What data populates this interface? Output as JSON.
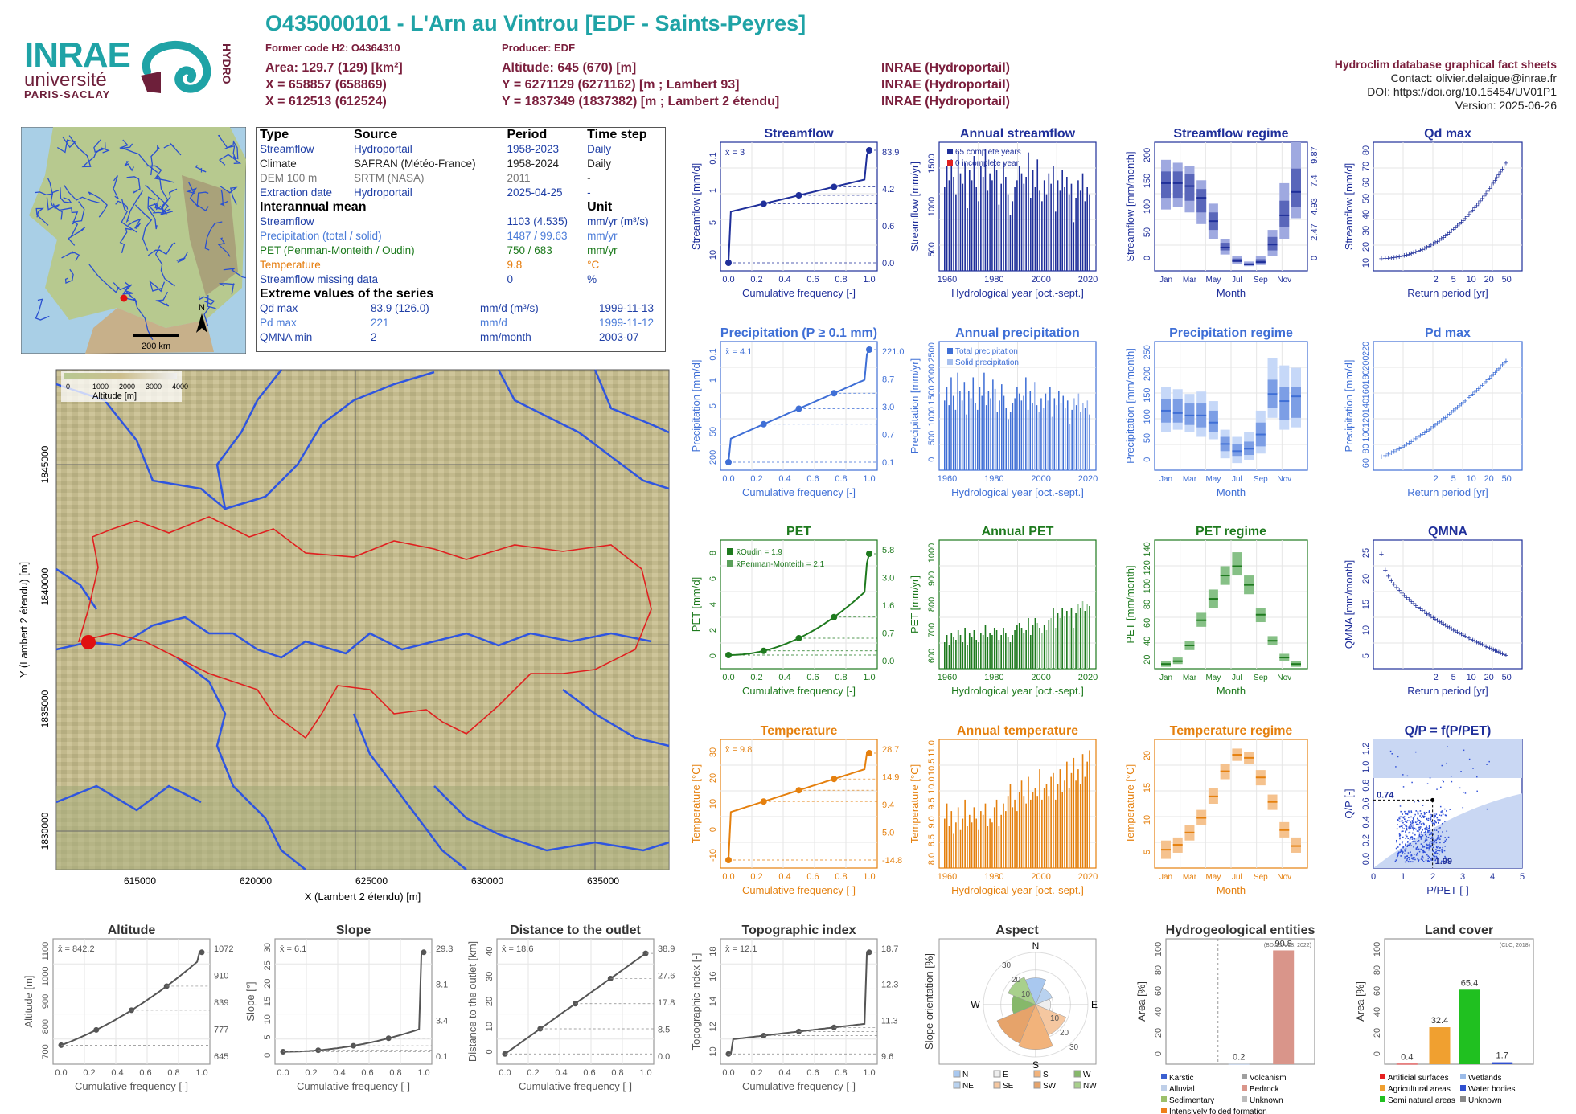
{
  "header": {
    "title": "O435000101 - L'Arn au Vintrou [EDF - Saints-Peyres]",
    "former_code": "Former code H2: O4364310",
    "producer": "Producer: EDF",
    "area": "Area: 129.7 (129) [km²]",
    "x93": "X = 658857 (658869)",
    "x2e": "X = 612513 (612524)",
    "altitude": "Altitude: 645 (670) [m]",
    "y93": "Y = 6271129 (6271162) [m ; Lambert 93]",
    "y2e": "Y = 1837349 (1837382) [m ; Lambert 2 étendu]",
    "src1": "INRAE (Hydroportail)",
    "src2": "INRAE (Hydroportail)",
    "src3": "INRAE (Hydroportail)",
    "db": "Hydroclim database graphical fact sheets",
    "contact": "Contact: olivier.delaigue@inrae.fr",
    "doi": "DOI: https://doi.org/10.15454/UV01P1",
    "version": "Version: 2025-06-26"
  },
  "logos": {
    "inrae": "INRAE",
    "univ": "université",
    "ps": "PARIS-SACLAY",
    "hydro": "HYDRO"
  },
  "minimap": {
    "scale": "200 km",
    "north": "N"
  },
  "info": {
    "h_type": "Type",
    "h_source": "Source",
    "h_period": "Period",
    "h_step": "Time step",
    "rows": [
      {
        "type": "Streamflow",
        "source": "Hydroportail",
        "period": "1958-2023",
        "step": "Daily"
      },
      {
        "type": "Climate",
        "source": "SAFRAN (Météo-France)",
        "period": "1958-2024",
        "step": "Daily"
      },
      {
        "type": "DEM 100 m",
        "source": "SRTM (NASA)",
        "period": "2011",
        "step": "-"
      },
      {
        "type": "Extraction date",
        "source": "Hydroportail",
        "period": "2025-04-25",
        "step": "-"
      }
    ],
    "h_inter": "Interannual mean",
    "h_unit": "Unit",
    "means": [
      {
        "name": "Streamflow",
        "value": "1103 (4.535)",
        "unit": "mm/yr (m³/s)"
      },
      {
        "name": "Precipitation (total / solid)",
        "value": "1487 / 99.63",
        "unit": "mm/yr"
      },
      {
        "name": "PET (Penman-Monteith / Oudin)",
        "value": "750 / 683",
        "unit": "mm/yr"
      },
      {
        "name": "Temperature",
        "value": "9.8",
        "unit": "°C"
      },
      {
        "name": "Streamflow missing data",
        "value": "0",
        "unit": "%"
      }
    ],
    "h_extreme": "Extreme values of the series",
    "extremes": [
      {
        "name": "Qd max",
        "value": "83.9 (126.0)",
        "unit": "mm/d (m³/s)",
        "date": "1999-11-13"
      },
      {
        "name": "Pd max",
        "value": "221",
        "unit": "mm/d",
        "date": "1999-11-12"
      },
      {
        "name": "QMNA min",
        "value": "2",
        "unit": "mm/month",
        "date": "2003-07"
      }
    ]
  },
  "bigmap": {
    "legend_title": "Altitude [m]",
    "legend_ticks": [
      "0",
      "1000",
      "2000",
      "3000",
      "4000"
    ],
    "xlabel": "X (Lambert 2 étendu) [m]",
    "ylabel": "Y (Lambert 2 étendu) [m]",
    "xticks": [
      "615000",
      "620000",
      "625000",
      "630000",
      "635000"
    ],
    "yticks": [
      "1845000",
      "1840000",
      "1835000",
      "1830000"
    ]
  },
  "colors": {
    "streamflow": "#1f2f9a",
    "precip": "#3f6fd6",
    "pet": "#1e7a1e",
    "temp": "#e5800e",
    "topo": "#555555",
    "teal": "#1fa3a6"
  },
  "texts": {
    "cumfreq": "Cumulative frequency [-]",
    "hydroyear": "Hydrological year [oct.-sept.]",
    "month": "Month",
    "return": "Return period [yr]",
    "months": [
      "Jan",
      "Mar",
      "May",
      "Jul",
      "Sep",
      "Nov"
    ],
    "freqticks": [
      "0.0",
      "0.2",
      "0.4",
      "0.6",
      "0.8",
      "1.0"
    ],
    "yearticks": [
      "1960",
      "1980",
      "2000",
      "2020"
    ],
    "rpticks": [
      "2",
      "5",
      "10",
      "20",
      "50"
    ]
  },
  "chart_data": [
    {
      "id": "sf_cdf",
      "type": "line",
      "title": "Streamflow",
      "ylabel": "Streamflow [mm/d]",
      "xlabel": "Cumulative frequency [-]",
      "mean_label": "x̄ = 3",
      "right_ticks": [
        "83.9",
        "4.2",
        "0.6",
        "0.0"
      ],
      "left_ticks": [
        "10",
        "5",
        "1",
        "0.1"
      ]
    },
    {
      "id": "sf_annual",
      "type": "bar",
      "title": "Annual streamflow",
      "ylabel": "Streamflow [mm/yr]",
      "yticks": [
        "500",
        "1000",
        "1500"
      ],
      "ylim": [
        0,
        1800
      ],
      "legend": [
        "65 complete years",
        "0 incomplete year"
      ],
      "values": [
        1200,
        1500,
        1300,
        1600,
        1350,
        1100,
        1700,
        1400,
        1250,
        1550,
        900,
        1450,
        1300,
        1650,
        1200,
        1000,
        1500,
        1350,
        1750,
        1150,
        1400,
        1300,
        1600,
        1450,
        950,
        1250,
        1550,
        1350,
        1100,
        800,
        1000,
        1200,
        1300,
        1500,
        1400,
        1250,
        1350,
        1700,
        1050,
        1450,
        1200,
        1600,
        1150,
        1000,
        1300,
        1100,
        1400,
        1250,
        1500,
        850,
        1300,
        1150,
        1450,
        1200,
        1350,
        1100,
        1250,
        700,
        1050,
        1300,
        1150,
        1400,
        1000,
        1200,
        1100
      ]
    },
    {
      "id": "sf_regime",
      "type": "box",
      "title": "Streamflow regime",
      "ylabel": "Streamflow [mm/month]",
      "yticks": [
        "0",
        "50",
        "100",
        "150",
        "200"
      ],
      "right_ticks": [
        "0",
        "2.47",
        "4.93",
        "7.4",
        "9.87"
      ],
      "ylim": [
        0,
        220
      ],
      "q10": [
        105,
        110,
        100,
        80,
        55,
        28,
        12,
        8,
        10,
        25,
        55,
        90
      ],
      "q25": [
        125,
        125,
        120,
        100,
        70,
        35,
        15,
        10,
        13,
        35,
        75,
        110
      ],
      "median": [
        150,
        150,
        145,
        125,
        85,
        40,
        17,
        11,
        15,
        45,
        95,
        135
      ],
      "q75": [
        170,
        170,
        165,
        140,
        100,
        48,
        21,
        13,
        20,
        58,
        120,
        175
      ],
      "q90": [
        190,
        185,
        180,
        155,
        115,
        55,
        25,
        16,
        25,
        70,
        150,
        220
      ]
    },
    {
      "id": "qd_max",
      "type": "scatter",
      "title": "Qd max",
      "ylabel": "Streamflow [mm/d]",
      "yticks": [
        "10",
        "20",
        "30",
        "40",
        "50",
        "60",
        "70",
        "80"
      ],
      "ylim": [
        0,
        88
      ]
    },
    {
      "id": "p_cdf",
      "type": "line",
      "title": "Precipitation (P ≥ 0.1 mm)",
      "ylabel": "Precipitation [mm/d]",
      "mean_label": "x̄ = 4.1",
      "right_ticks": [
        "221.0",
        "8.7",
        "3.0",
        "0.7",
        "0.1"
      ],
      "left_ticks": [
        "200",
        "50",
        "5",
        "1",
        "0.1"
      ]
    },
    {
      "id": "p_annual",
      "type": "bar",
      "title": "Annual precipitation",
      "ylabel": "Precipitation [mm/yr]",
      "yticks": [
        "0",
        "500",
        "1000",
        "1500",
        "2000",
        "2500"
      ],
      "ylim": [
        0,
        2700
      ],
      "legend": [
        "Total precipitation",
        "Solid precipitation"
      ],
      "values": [
        1500,
        1800,
        1400,
        2000,
        1600,
        1300,
        2100,
        1700,
        1500,
        1900,
        1200,
        1700,
        1550,
        2000,
        1450,
        1300,
        1800,
        1600,
        2100,
        1400,
        1700,
        1550,
        1950,
        1750,
        1250,
        1500,
        1850,
        1600,
        1350,
        1100,
        1250,
        1450,
        1550,
        1800,
        1650,
        1500,
        1600,
        2000,
        1300,
        1700,
        1450,
        1900,
        1400,
        1250,
        1550,
        1350,
        1650,
        1500,
        1800,
        1150,
        1550,
        1400,
        1700,
        1450,
        1600,
        1350,
        1500,
        1000,
        1300,
        1550,
        1400,
        1650,
        1250,
        1450,
        1350,
        1500,
        1200
      ]
    },
    {
      "id": "p_regime",
      "type": "box",
      "title": "Precipitation regime",
      "ylabel": "Precipitation [mm/month]",
      "yticks": [
        "0",
        "50",
        "100",
        "150",
        "200",
        "250"
      ],
      "ylim": [
        0,
        270
      ],
      "q10": [
        80,
        85,
        80,
        70,
        65,
        25,
        15,
        22,
        35,
        110,
        85,
        90
      ],
      "q25": [
        100,
        100,
        95,
        90,
        80,
        40,
        30,
        32,
        50,
        130,
        105,
        110
      ],
      "median": [
        125,
        120,
        115,
        115,
        100,
        55,
        40,
        45,
        75,
        160,
        145,
        155
      ],
      "q75": [
        150,
        150,
        140,
        140,
        125,
        70,
        55,
        60,
        100,
        190,
        175,
        175
      ],
      "q90": [
        175,
        170,
        160,
        165,
        145,
        85,
        70,
        80,
        125,
        235,
        220,
        215
      ]
    },
    {
      "id": "pd_max",
      "type": "scatter",
      "title": "Pd max",
      "ylabel": "Precipitation [mm/d]",
      "yticks": [
        "60",
        "80",
        "100",
        "120",
        "140",
        "160",
        "180",
        "200",
        "220"
      ],
      "ylim": [
        40,
        235
      ]
    },
    {
      "id": "pet_cdf",
      "type": "line",
      "title": "PET",
      "ylabel": "PET [mm/d]",
      "legend": [
        "x̄Oudin = 1.9",
        "x̄Penman-Monteith = 2.1"
      ],
      "right_ticks": [
        "5.8",
        "3.0",
        "1.6",
        "0.7",
        "0.0"
      ],
      "left_ticks": [
        "0",
        "2",
        "4",
        "6",
        "8"
      ]
    },
    {
      "id": "pet_annual",
      "type": "bar",
      "title": "Annual PET",
      "ylabel": "PET [mm/yr]",
      "yticks": [
        "600",
        "700",
        "800",
        "900",
        "1000"
      ],
      "ylim": [
        550,
        1070
      ],
      "values": [
        660,
        690,
        650,
        700,
        680,
        670,
        710,
        690,
        660,
        720,
        650,
        700,
        680,
        710,
        670,
        660,
        700,
        690,
        730,
        680,
        700,
        690,
        720,
        710,
        670,
        690,
        720,
        700,
        680,
        660,
        690,
        710,
        730,
        740,
        720,
        700,
        710,
        760,
        690,
        730,
        760,
        740,
        720,
        700,
        730,
        710,
        750,
        760,
        800,
        720,
        780,
        760,
        800,
        770,
        790,
        770,
        800,
        720,
        780,
        820,
        800,
        830,
        790,
        820,
        810
      ]
    },
    {
      "id": "pet_regime",
      "type": "box",
      "title": "PET regime",
      "ylabel": "PET [mm/month]",
      "yticks": [
        "20",
        "40",
        "60",
        "80",
        "100",
        "120",
        "140"
      ],
      "ylim": [
        10,
        148
      ],
      "q10": [
        12,
        15,
        30,
        55,
        75,
        100,
        110,
        90,
        60,
        35,
        18,
        12
      ],
      "median": [
        15,
        18,
        35,
        62,
        85,
        110,
        120,
        100,
        68,
        40,
        22,
        15
      ],
      "q90": [
        18,
        22,
        40,
        70,
        95,
        120,
        135,
        110,
        75,
        45,
        26,
        18
      ]
    },
    {
      "id": "qmna",
      "type": "scatter",
      "title": "QMNA",
      "ylabel": "QMNA [mm/month]",
      "yticks": [
        "5",
        "10",
        "15",
        "20",
        "25"
      ],
      "ylim": [
        0,
        27
      ]
    },
    {
      "id": "t_cdf",
      "type": "line",
      "title": "Temperature",
      "ylabel": "Temperature [°C]",
      "mean_label": "x̄ = 9.8",
      "right_ticks": [
        "28.7",
        "14.9",
        "9.4",
        "5.0",
        "-14.8"
      ],
      "left_ticks": [
        "-10",
        "0",
        "10",
        "20",
        "30"
      ]
    },
    {
      "id": "t_annual",
      "type": "bar",
      "title": "Annual temperature",
      "ylabel": "Temperature [°C]",
      "yticks": [
        "8.0",
        "8.5",
        "9.0",
        "9.5",
        "10.0",
        "10.5",
        "11.0"
      ],
      "ylim": [
        8.0,
        11.3
      ],
      "values": [
        9.3,
        9.7,
        9.1,
        9.5,
        8.9,
        9.2,
        9.6,
        9.0,
        9.3,
        9.8,
        9.1,
        9.4,
        9.2,
        9.6,
        9.3,
        9.0,
        9.5,
        9.4,
        9.7,
        9.1,
        9.3,
        9.2,
        9.6,
        9.8,
        9.1,
        9.4,
        9.7,
        9.5,
        9.9,
        10.2,
        9.6,
        9.8,
        9.5,
        10.0,
        10.3,
        9.9,
        9.7,
        10.4,
        9.8,
        10.0,
        10.1,
        9.9,
        10.6,
        9.8,
        10.1,
        10.2,
        9.9,
        10.4,
        10.5,
        9.8,
        10.2,
        10.6,
        10.0,
        10.3,
        10.8,
        10.1,
        10.5,
        10.9,
        10.3,
        10.6,
        10.2,
        11.0,
        10.4,
        10.8,
        11.1
      ]
    },
    {
      "id": "t_regime",
      "type": "box",
      "title": "Temperature regime",
      "ylabel": "Temperature [°C]",
      "yticks": [
        "5",
        "10",
        "15",
        "20"
      ],
      "ylim": [
        0,
        21
      ],
      "q10": [
        1.5,
        2.5,
        4.5,
        7,
        10.5,
        14.5,
        17.5,
        17,
        13.5,
        9.5,
        5,
        2.5
      ],
      "median": [
        3,
        3.8,
        5.8,
        8.2,
        11.7,
        15.8,
        18.5,
        18,
        14.8,
        10.8,
        6.2,
        3.6
      ],
      "q90": [
        4.5,
        5,
        7,
        9.5,
        13,
        17,
        19.5,
        19,
        16,
        12,
        7.5,
        5
      ]
    },
    {
      "id": "qp_pet",
      "type": "scatter",
      "title": "Q/P = f(P/PET)",
      "ylabel": "Q/P [-]",
      "xlabel": "P/PET [-]",
      "xticks": [
        "0",
        "1",
        "2",
        "3",
        "4",
        "5"
      ],
      "yticks": [
        "0.0",
        "0.2",
        "0.4",
        "0.6",
        "0.8",
        "1.0",
        "1.2"
      ],
      "xlim": [
        0,
        5
      ],
      "ylim": [
        0,
        1.4
      ],
      "point": {
        "x": 1.99,
        "y": 0.74
      },
      "labels": [
        "0.74",
        "1.99"
      ]
    },
    {
      "id": "alt_cdf",
      "type": "line",
      "title": "Altitude",
      "ylabel": "Altitude [m]",
      "mean_label": "x̄ = 842.2",
      "left_ticks": [
        "700",
        "800",
        "900",
        "1000",
        "1100"
      ],
      "right_ticks": [
        "1072",
        "910",
        "839",
        "777",
        "645"
      ]
    },
    {
      "id": "slope_cdf",
      "type": "line",
      "title": "Slope",
      "ylabel": "Slope [°]",
      "mean_label": "x̄ = 6.1",
      "left_ticks": [
        "0",
        "5",
        "10",
        "15",
        "20",
        "25",
        "30"
      ],
      "right_ticks": [
        "29.3",
        "8.1",
        "3.4",
        "0.1"
      ]
    },
    {
      "id": "dist_cdf",
      "type": "line",
      "title": "Distance to the outlet",
      "ylabel": "Distance to the outlet [km]",
      "mean_label": "x̄ = 18.6",
      "left_ticks": [
        "0",
        "10",
        "20",
        "30",
        "40"
      ],
      "right_ticks": [
        "38.9",
        "27.6",
        "17.8",
        "8.5",
        "0.0"
      ]
    },
    {
      "id": "topo_cdf",
      "type": "line",
      "title": "Topographic index",
      "ylabel": "Topographic index [-]",
      "mean_label": "x̄ = 12.1",
      "left_ticks": [
        "10",
        "12",
        "14",
        "16",
        "18"
      ],
      "right_ticks": [
        "18.7",
        "12.3",
        "11.3",
        "9.6"
      ]
    },
    {
      "id": "aspect",
      "type": "pie",
      "title": "Aspect",
      "ylabel": "Slope orientation [%]",
      "dirs": [
        "N",
        "E",
        "S",
        "W"
      ],
      "rings": [
        "10",
        "20",
        "30"
      ],
      "legend": [
        "N",
        "E",
        "S",
        "W",
        "NE",
        "SE",
        "SW",
        "NW"
      ]
    },
    {
      "id": "hydrogeo",
      "type": "bar",
      "title": "Hydrogeological entities",
      "ylabel": "Area [%]",
      "yticks": [
        "0",
        "20",
        "40",
        "60",
        "80",
        "100"
      ],
      "ylim": [
        0,
        110
      ],
      "source": "(BDLISA V3, 2022)",
      "categories": [
        "Alluvial",
        "Bedrock"
      ],
      "values": [
        0.2,
        99.8
      ],
      "value_labels": [
        "0.2",
        "99.8"
      ],
      "legend": [
        "Karstic",
        "Volcanism",
        "Alluvial",
        "Bedrock",
        "Sedimentary",
        "Unknown",
        "Intensively folded formation"
      ]
    },
    {
      "id": "landcover",
      "type": "bar",
      "title": "Land cover",
      "ylabel": "Area [%]",
      "yticks": [
        "0",
        "20",
        "40",
        "60",
        "80",
        "100"
      ],
      "ylim": [
        0,
        110
      ],
      "source": "(CLC, 2018)",
      "categories": [
        "Artificial surfaces",
        "Agricultural areas",
        "Semi natural areas",
        "Water bodies"
      ],
      "values": [
        0.4,
        32.4,
        65.4,
        1.7
      ],
      "value_labels": [
        "0.4",
        "32.4",
        "65.4",
        "1.7"
      ],
      "legend": [
        "Artificial surfaces",
        "Wetlands",
        "Agricultural areas",
        "Water bodies",
        "Semi natural areas",
        "Unknown"
      ]
    }
  ]
}
